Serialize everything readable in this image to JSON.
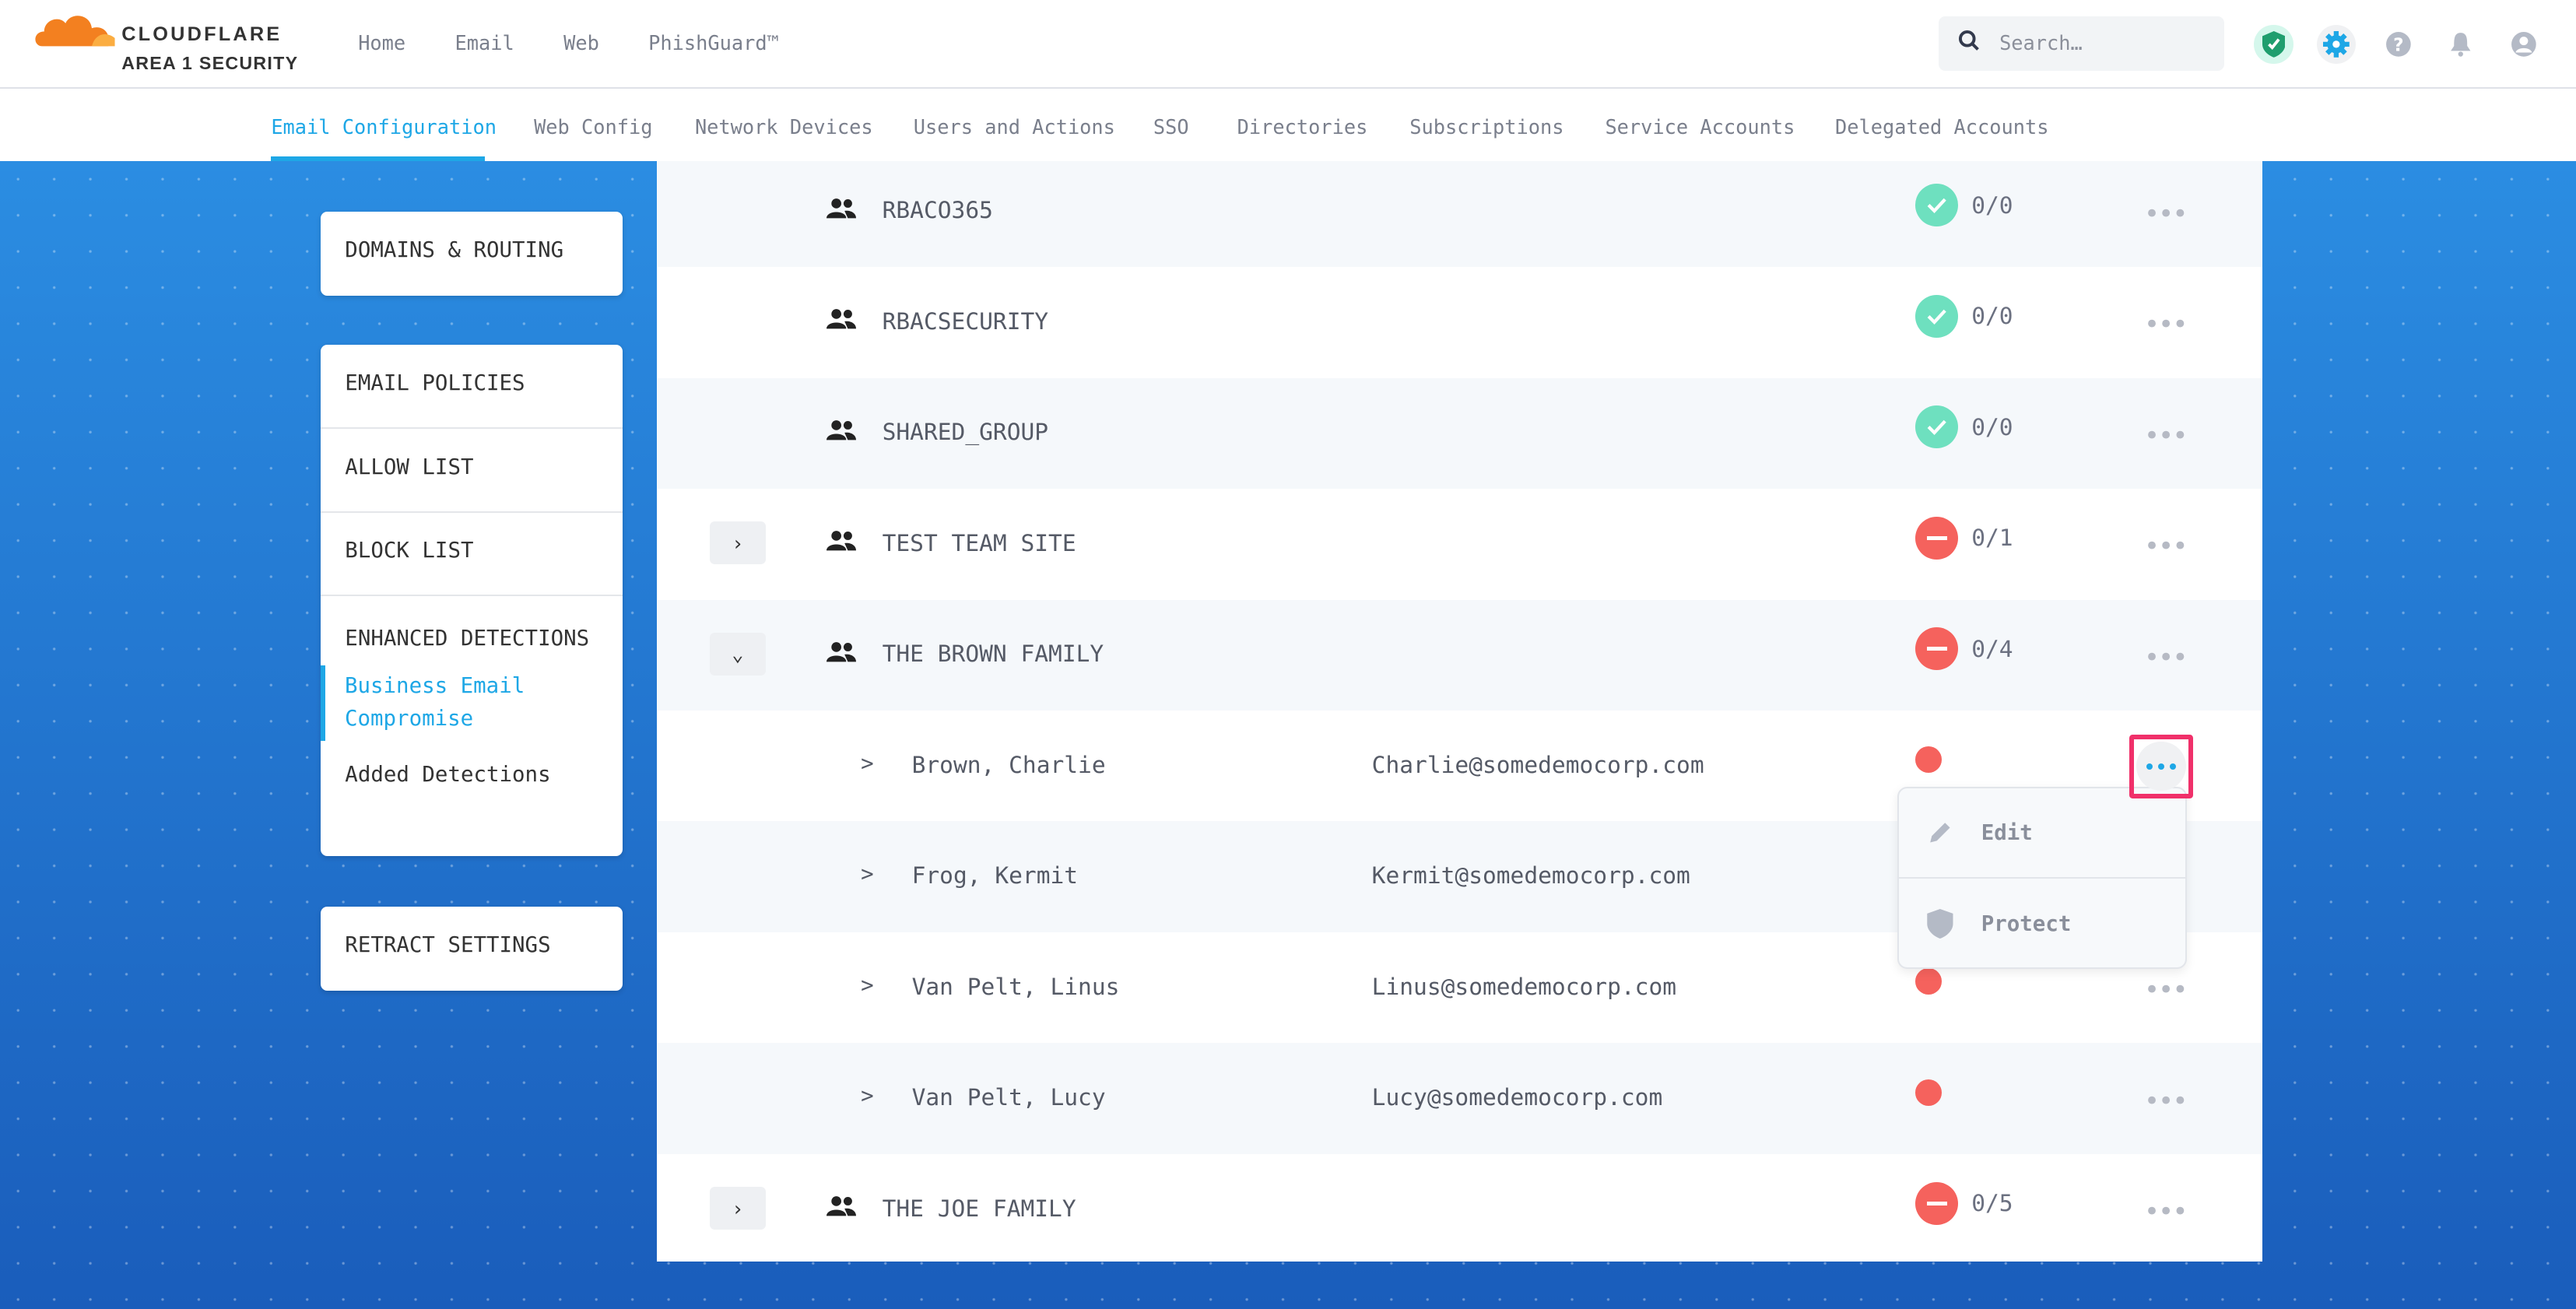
{
  "brand": {
    "name": "CLOUDFLARE",
    "product": "AREA 1 SECURITY",
    "colors": {
      "orange": "#f38020",
      "accent": "#1ea7e6",
      "error": "#f5625d",
      "ok": "#6ee0bf",
      "highlight": "#f0306a"
    }
  },
  "top_nav": [
    "Home",
    "Email",
    "Web",
    "PhishGuard™"
  ],
  "search": {
    "placeholder": "Search…"
  },
  "header_icons": [
    "shield-check-icon",
    "gear-icon",
    "help-icon",
    "bell-icon",
    "user-icon"
  ],
  "sub_nav": {
    "active": "Email Configuration",
    "tabs": [
      "Email Configuration",
      "Web Config",
      "Network Devices",
      "Users and Actions",
      "SSO",
      "Directories",
      "Subscriptions",
      "Service Accounts",
      "Delegated Accounts"
    ]
  },
  "sidebar": {
    "card1": [
      "DOMAINS & ROUTING"
    ],
    "card2": [
      "EMAIL POLICIES",
      "ALLOW LIST",
      "BLOCK LIST",
      "ENHANCED DETECTIONS"
    ],
    "sub_items": [
      "Business Email Compromise",
      "Added Detections"
    ],
    "active_sub": "Business Email Compromise",
    "card3": [
      "RETRACT SETTINGS"
    ]
  },
  "rows": [
    {
      "type": "group",
      "name": "RBACO365",
      "status": "ok",
      "count": "0/0",
      "expander": ""
    },
    {
      "type": "group",
      "name": "RBACSECURITY",
      "status": "ok",
      "count": "0/0",
      "expander": ""
    },
    {
      "type": "group",
      "name": "SHARED_GROUP",
      "status": "ok",
      "count": "0/0",
      "expander": ""
    },
    {
      "type": "group",
      "name": "TEST TEAM SITE",
      "status": "blocked",
      "count": "0/1",
      "expander": "›"
    },
    {
      "type": "group",
      "name": "THE BROWN FAMILY",
      "status": "blocked",
      "count": "0/4",
      "expander": "⌄"
    },
    {
      "type": "member",
      "chev": ">",
      "name": "Brown, Charlie",
      "email": "Charlie@somedemocorp.com"
    },
    {
      "type": "member",
      "chev": ">",
      "name": "Frog, Kermit",
      "email": "Kermit@somedemocorp.com"
    },
    {
      "type": "member",
      "chev": ">",
      "name": "Van Pelt, Linus",
      "email": "Linus@somedemocorp.com"
    },
    {
      "type": "member",
      "chev": ">",
      "name": "Van Pelt, Lucy",
      "email": "Lucy@somedemocorp.com"
    },
    {
      "type": "group",
      "name": "THE JOE FAMILY",
      "status": "blocked",
      "count": "0/5",
      "expander": "›"
    }
  ],
  "more_glyph": "•••",
  "menu": {
    "edit": "Edit",
    "protect": "Protect"
  }
}
